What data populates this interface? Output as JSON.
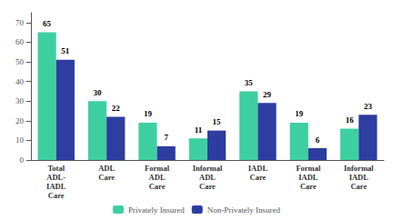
{
  "chart_data": {
    "type": "bar",
    "categories": [
      "Total\nADL-\nIADL\nCare",
      "ADL\nCare",
      "Formal\nADL\nCare",
      "Informal\nADL\nCare",
      "IADL\nCare",
      "Formal\nIADL\nCare",
      "Informal\nIADL\nCare"
    ],
    "series": [
      {
        "name": "Privately Insured",
        "color": "#3ECFA0",
        "values": [
          65,
          30,
          19,
          11,
          35,
          19,
          16
        ]
      },
      {
        "name": "Non-Privately Insured",
        "color": "#2E3DA0",
        "values": [
          51,
          22,
          7,
          15,
          29,
          6,
          23
        ]
      }
    ],
    "ylim": [
      0,
      75
    ],
    "yticks": [
      0,
      10,
      20,
      30,
      40,
      50,
      60,
      70
    ],
    "grid": false,
    "legend": "bottom",
    "data_labels": true
  }
}
